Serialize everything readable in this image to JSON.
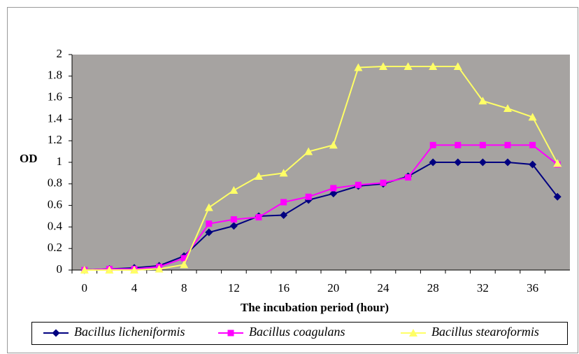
{
  "chart_data": {
    "type": "line",
    "y_label": "OD",
    "x_label": "The incubation period (hour)",
    "categories": [
      "0",
      null,
      "4",
      null,
      "8",
      null,
      "12",
      null,
      "16",
      null,
      "20",
      null,
      "24",
      null,
      "28",
      null,
      "32",
      null,
      "36",
      null
    ],
    "series": [
      {
        "name": "Bacillus licheniformis",
        "color": "#000080",
        "marker": "diamond",
        "values": [
          0,
          0.01,
          0.02,
          0.04,
          0.13,
          0.35,
          0.41,
          0.5,
          0.51,
          0.65,
          0.71,
          0.78,
          0.8,
          0.87,
          1.0,
          1.0,
          1.0,
          1.0,
          0.98,
          0.68
        ]
      },
      {
        "name": "Bacillus coagulans",
        "color": "#ff00ff",
        "marker": "square",
        "values": [
          0,
          0.01,
          0.01,
          0.03,
          0.11,
          0.43,
          0.47,
          0.49,
          0.63,
          0.68,
          0.76,
          0.79,
          0.81,
          0.86,
          1.16,
          1.16,
          1.16,
          1.16,
          1.16,
          0.98
        ]
      },
      {
        "name": "Bacillus stearoformis",
        "color": "#ffff66",
        "marker": "triangle",
        "values": [
          0,
          0,
          0,
          0.01,
          0.05,
          0.58,
          0.74,
          0.87,
          0.9,
          1.1,
          1.16,
          1.88,
          1.89,
          1.89,
          1.89,
          1.89,
          1.57,
          1.5,
          1.42,
          0.99
        ]
      }
    ],
    "ylim": [
      0,
      2
    ],
    "yticks": [
      0,
      0.2,
      0.4,
      0.6,
      0.8,
      1,
      1.2,
      1.4,
      1.6,
      1.8,
      2
    ],
    "grid": false,
    "plot_background": "#a6a3a1",
    "legend": "bottom"
  }
}
